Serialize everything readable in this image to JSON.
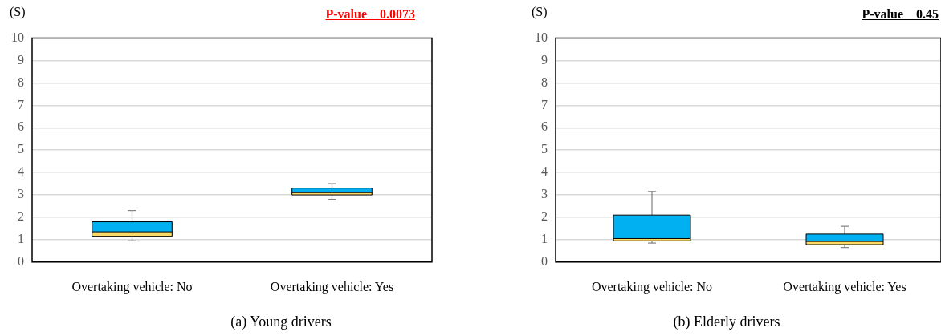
{
  "chart_data": [
    {
      "type": "box",
      "title": "(a) Young drivers",
      "ylabel": "(S)",
      "annotations": [
        "P-value　0.0073"
      ],
      "categories": [
        "Overtaking vehicle: No",
        "Overtaking vehicle: Yes"
      ],
      "colors": [
        "#00b0f0",
        "#00b0f0"
      ],
      "ylim": [
        0,
        10
      ],
      "yticks": [
        0,
        1,
        2,
        3,
        4,
        5,
        6,
        7,
        8,
        9,
        10
      ],
      "grid": "y",
      "boxes": [
        {
          "low": 0.95,
          "q1": 1.15,
          "median": 1.35,
          "q3": 1.8,
          "high": 2.3
        },
        {
          "low": 2.8,
          "q1": 3.0,
          "median": 3.1,
          "q3": 3.3,
          "high": 3.5
        }
      ]
    },
    {
      "type": "box",
      "title": "(b) Elderly drivers",
      "ylabel": "(S)",
      "annotations": [
        "P-value　0.45"
      ],
      "categories": [
        "Overtaking vehicle: No",
        "Overtaking vehicle: Yes"
      ],
      "colors": [
        "#00b0f0",
        "#00b0f0"
      ],
      "ylim": [
        0,
        10
      ],
      "yticks": [
        0,
        1,
        2,
        3,
        4,
        5,
        6,
        7,
        8,
        9,
        10
      ],
      "grid": "y",
      "boxes": [
        {
          "low": 0.85,
          "q1": 0.95,
          "median": 1.05,
          "q3": 2.1,
          "high": 3.15
        },
        {
          "low": 0.65,
          "q1": 0.78,
          "median": 0.92,
          "q3": 1.25,
          "high": 1.6
        }
      ]
    }
  ]
}
